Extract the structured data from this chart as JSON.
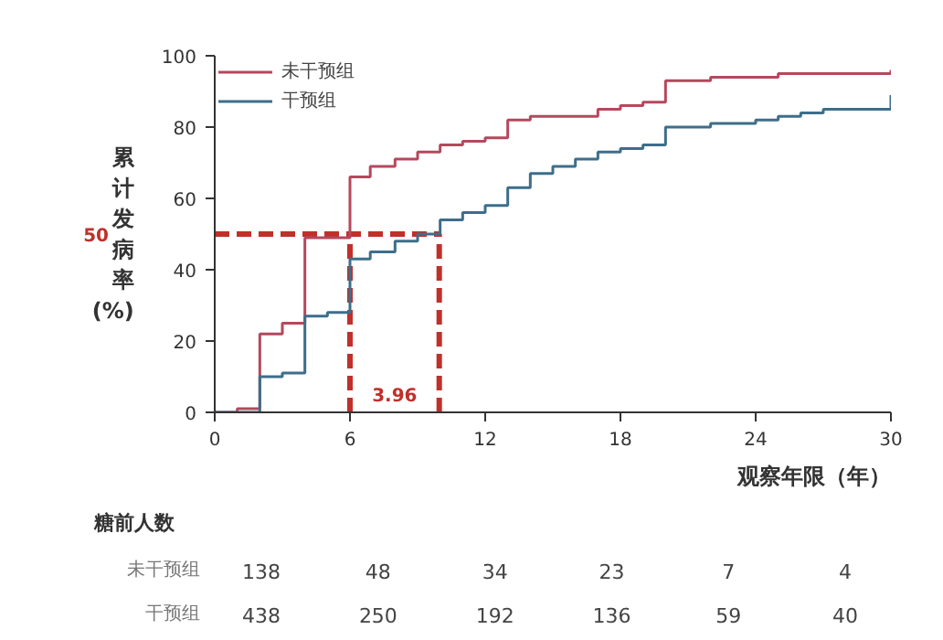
{
  "chart_data": [
    {
      "type": "step",
      "xlabel": "观察年限（年）",
      "ylabel": "累计发病率(%)",
      "xlim": [
        0,
        30
      ],
      "xticks": [
        0,
        6,
        12,
        18,
        24,
        30
      ],
      "ylim": [
        0,
        100
      ],
      "yticks": [
        0,
        20,
        40,
        60,
        80,
        100
      ],
      "grid": false,
      "legend": "top left",
      "series": [
        {
          "name": "未干预组",
          "color": "#b5485d",
          "x": [
            0,
            1,
            2,
            3,
            4,
            6,
            6.9,
            8,
            9,
            10,
            11,
            12,
            13,
            14,
            17,
            18,
            19,
            20,
            22,
            25,
            30
          ],
          "values": [
            0,
            1,
            22,
            25,
            49,
            66,
            69,
            71,
            73,
            75,
            76,
            77,
            82,
            83,
            85,
            86,
            87,
            93,
            94,
            95,
            96
          ]
        },
        {
          "name": "干预组",
          "color": "#3d6e8a",
          "x": [
            0,
            2,
            3,
            4,
            5,
            6,
            6.9,
            8,
            9,
            10,
            11,
            12,
            13,
            14,
            15,
            16,
            17,
            18,
            19,
            20,
            22,
            24,
            25,
            26,
            27,
            30
          ],
          "values": [
            0,
            10,
            11,
            27,
            28,
            43,
            45,
            48,
            50,
            54,
            56,
            58,
            63,
            67,
            69,
            71,
            73,
            74,
            75,
            80,
            81,
            82,
            83,
            84,
            85,
            89
          ]
        }
      ],
      "ref_lines": [
        {
          "axis": "y",
          "value": 50,
          "label": "50",
          "color": "#c0302a",
          "line_style": "dashed"
        },
        {
          "axis": "x",
          "value": 6,
          "color": "#c0302a",
          "line_style": "dashed"
        },
        {
          "axis": "x",
          "value": 9.96,
          "color": "#c0302a",
          "line_style": "dashed"
        }
      ],
      "annotations": [
        "3.96"
      ]
    },
    {
      "type": "heatmap",
      "title": "糖前人数",
      "categories": [
        null,
        null,
        null,
        null,
        null,
        null
      ],
      "data_labels": true,
      "y_categories": [
        "未干预组",
        "干预组"
      ],
      "cells": [
        [
          138,
          48,
          34,
          23,
          7,
          4
        ],
        [
          438,
          250,
          192,
          136,
          59,
          40
        ]
      ]
    }
  ]
}
